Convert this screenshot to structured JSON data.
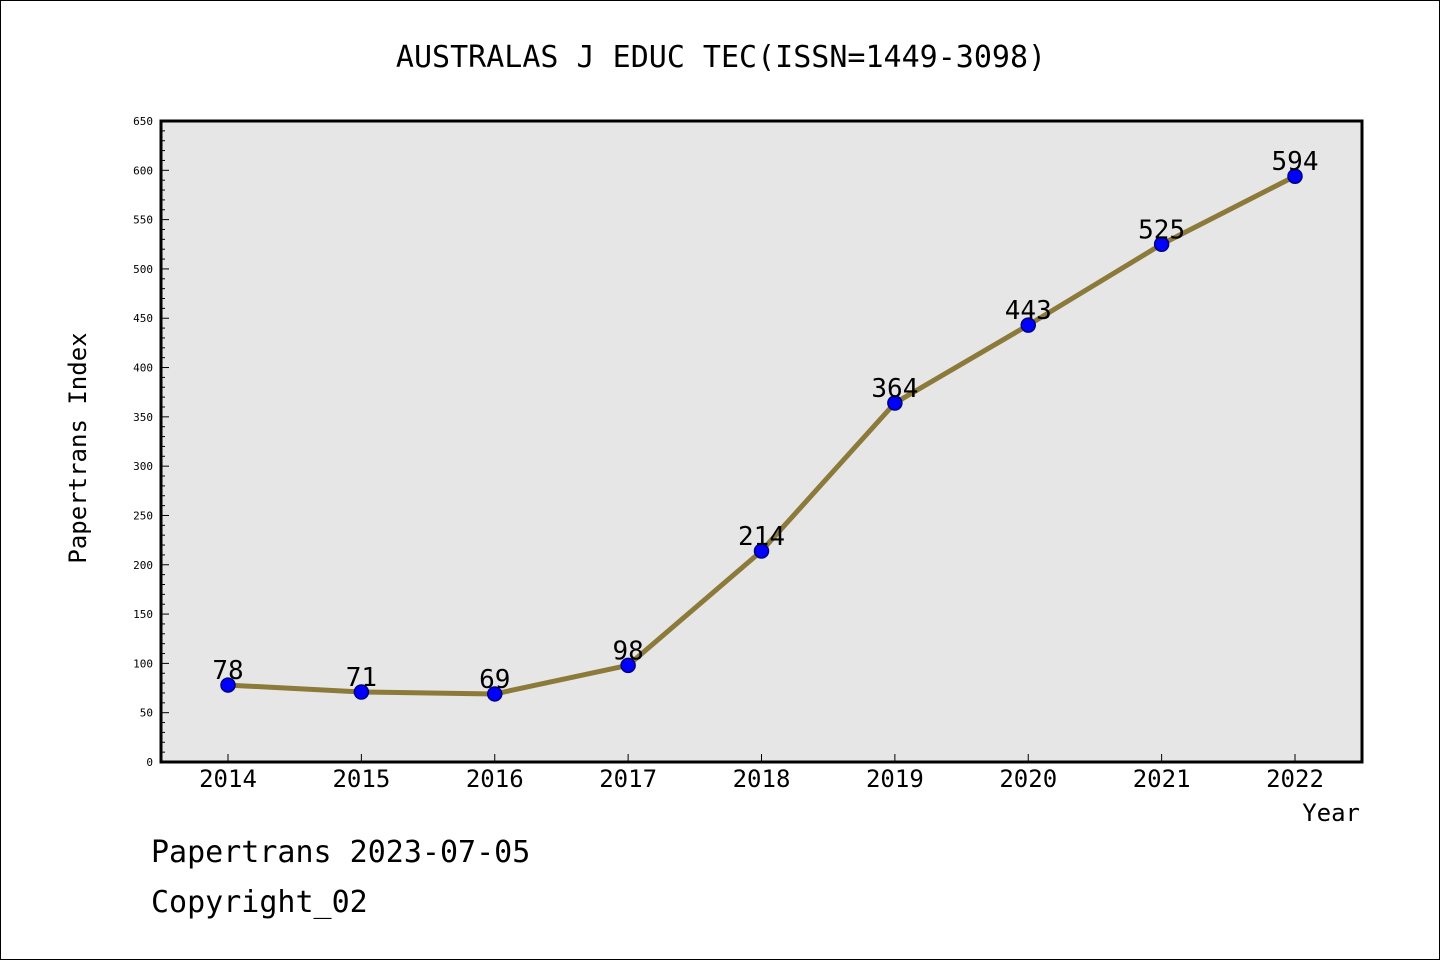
{
  "chart_data": {
    "type": "line",
    "title": "AUSTRALAS J EDUC TEC(ISSN=1449-3098)",
    "xlabel": "Year",
    "ylabel": "Papertrans Index",
    "categories": [
      "2014",
      "2015",
      "2016",
      "2017",
      "2018",
      "2019",
      "2020",
      "2021",
      "2022"
    ],
    "values": [
      78,
      71,
      69,
      98,
      214,
      364,
      443,
      525,
      594
    ],
    "data_labels": [
      "78",
      "71",
      "69",
      "98",
      "214",
      "364",
      "443",
      "525",
      "594"
    ],
    "ylim": [
      0,
      650
    ],
    "yticks": [
      "0",
      "50",
      "100",
      "150",
      "200",
      "250",
      "300",
      "350",
      "400",
      "450",
      "500",
      "550",
      "600",
      "650"
    ],
    "grid": false,
    "legend": "none",
    "colors": {
      "line": "#8B7A3A",
      "marker_fill": "#0000FF",
      "marker_stroke": "#000080",
      "plot_background": "#E6E6E6",
      "axis": "#000000"
    }
  },
  "footer": {
    "line1": "Papertrans 2023-07-05",
    "line2": "Copyright_02"
  }
}
